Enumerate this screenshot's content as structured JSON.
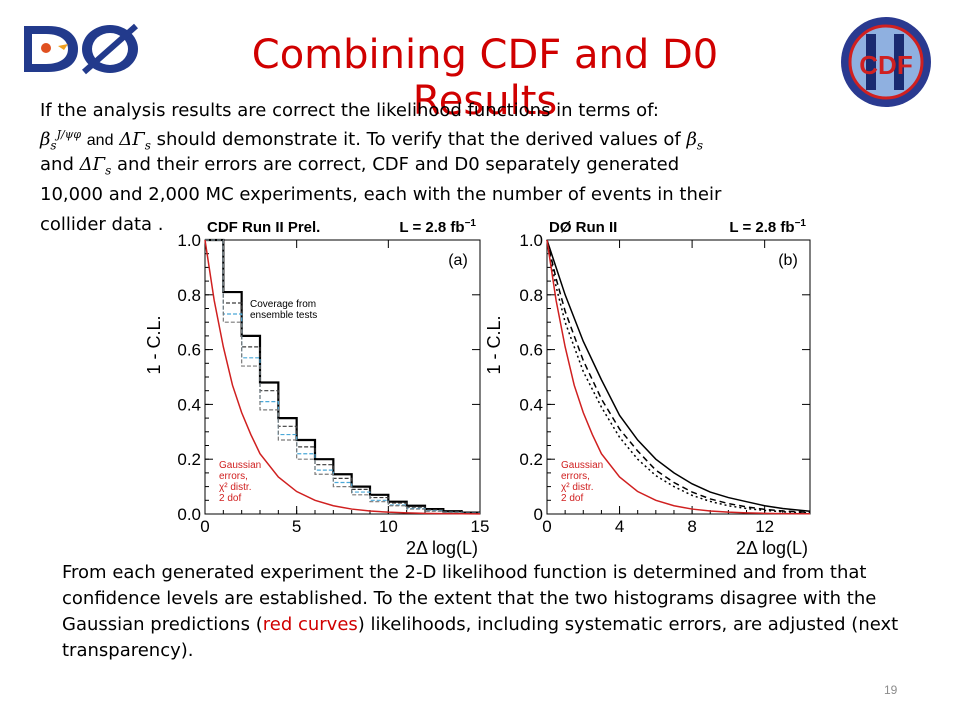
{
  "slide": {
    "title": "Combining CDF and D0 Results",
    "page_number": "19",
    "logos": {
      "left": "DØ",
      "right": "CDF"
    }
  },
  "intro": {
    "line1": "If the analysis results are correct the likelihood functions in terms of:",
    "sym_beta": "β",
    "sym_beta_sub": "s",
    "sym_beta_sup": "J/ψφ",
    "word_and": "and",
    "sym_dgamma": "ΔΓ",
    "sym_dgamma_sub": "s",
    "line2_rest": "should demonstrate it.  To verify that the derived values of",
    "sym_beta2": "β",
    "sym_beta2_sub": "s",
    "line3_a": "and",
    "sym_dgamma2": "ΔΓ",
    "sym_dgamma2_sub": "s",
    "line3_b": "and their  errors are  correct, CDF and D0 separately generated",
    "line4": "10,000 and  2,000 MC experiments,  each with the number of events in their",
    "line5": "collider data ."
  },
  "conclusion": {
    "text_before": "From each generated experiment the 2-D likelihood function is determined and from that confidence levels are established.  To the extent that the two histograms disagree with the Gaussian predictions (",
    "text_red": "red curves",
    "text_after": ") likelihoods, including systematic errors, are adjusted (next transparency)."
  },
  "chart_data": [
    {
      "type": "line",
      "panel": "(a)",
      "header_left": "CDF  Run II Prel.",
      "header_right": "L = 2.8 fb",
      "header_right_sup": "−1",
      "xlabel": "2Δ log(L)",
      "ylabel": "1 - C.L.",
      "xlim": [
        0,
        15
      ],
      "ylim": [
        0,
        1.0
      ],
      "xticks": [
        0,
        5,
        10,
        15
      ],
      "yticks": [
        0.0,
        0.2,
        0.4,
        0.6,
        0.8,
        1.0
      ],
      "annotations": [
        {
          "text": "Coverage from",
          "color": "#000000"
        },
        {
          "text": "ensemble tests",
          "color": "#000000"
        },
        {
          "text": "Gaussian",
          "color": "#d02020"
        },
        {
          "text": "errors,",
          "color": "#d02020"
        },
        {
          "text": "χ² distr.",
          "color": "#d02020"
        },
        {
          "text": "2 dof",
          "color": "#d02020"
        }
      ],
      "series": [
        {
          "kind": "step",
          "bin_edges": [
            0,
            1,
            2,
            3,
            4,
            5,
            6,
            7,
            8,
            9,
            10,
            11,
            12,
            13,
            14,
            15
          ],
          "values": [
            1.0,
            0.81,
            0.65,
            0.48,
            0.35,
            0.27,
            0.2,
            0.145,
            0.1,
            0.07,
            0.045,
            0.03,
            0.018,
            0.01,
            0.005
          ],
          "color": "#000000"
        },
        {
          "kind": "step",
          "bin_edges": [
            0,
            1,
            2,
            3,
            4,
            5,
            6,
            7,
            8,
            9,
            10,
            11,
            12,
            13,
            14,
            15
          ],
          "values": [
            1.0,
            0.77,
            0.61,
            0.45,
            0.32,
            0.245,
            0.18,
            0.13,
            0.09,
            0.06,
            0.04,
            0.025,
            0.015,
            0.008,
            0.004
          ],
          "color": "#3a3a3a"
        },
        {
          "kind": "step",
          "bin_edges": [
            0,
            1,
            2,
            3,
            4,
            5,
            6,
            7,
            8,
            9,
            10,
            11,
            12,
            13,
            14,
            15
          ],
          "values": [
            1.0,
            0.73,
            0.57,
            0.41,
            0.29,
            0.22,
            0.16,
            0.115,
            0.08,
            0.05,
            0.033,
            0.02,
            0.012,
            0.006,
            0.003
          ],
          "color": "#4aa8d8"
        },
        {
          "kind": "step",
          "bin_edges": [
            0,
            1,
            2,
            3,
            4,
            5,
            6,
            7,
            8,
            9,
            10,
            11,
            12,
            13,
            14,
            15
          ],
          "values": [
            1.0,
            0.7,
            0.54,
            0.38,
            0.27,
            0.2,
            0.145,
            0.1,
            0.07,
            0.045,
            0.03,
            0.018,
            0.01,
            0.005,
            0.002
          ],
          "color": "#7a7a7a"
        },
        {
          "kind": "curve",
          "x": [
            0,
            0.5,
            1,
            1.5,
            2,
            2.5,
            3,
            4,
            5,
            6,
            7,
            8,
            9,
            10,
            11,
            12,
            13,
            14,
            15
          ],
          "values": [
            1.0,
            0.78,
            0.61,
            0.47,
            0.37,
            0.29,
            0.22,
            0.135,
            0.082,
            0.05,
            0.03,
            0.018,
            0.011,
            0.0067,
            0.004,
            0.0025,
            0.0015,
            0.0009,
            0.0006
          ],
          "color": "#d02020"
        }
      ]
    },
    {
      "type": "line",
      "panel": "(b)",
      "header_left": "DØ  Run II",
      "header_right": "L = 2.8 fb",
      "header_right_sup": "−1",
      "xlabel": "2Δ log(L)",
      "ylabel": "1 - C.L.",
      "xlim": [
        0,
        14.5
      ],
      "ylim": [
        0,
        1.0
      ],
      "xticks": [
        0,
        4,
        8,
        12
      ],
      "yticks": [
        0,
        0.2,
        0.4,
        0.6,
        0.8,
        1.0
      ],
      "annotations": [
        {
          "text": "Gaussian",
          "color": "#d02020"
        },
        {
          "text": "errors,",
          "color": "#d02020"
        },
        {
          "text": "χ² distr.",
          "color": "#d02020"
        },
        {
          "text": "2 dof",
          "color": "#d02020"
        }
      ],
      "series": [
        {
          "kind": "curve",
          "x": [
            0,
            0.5,
            1,
            2,
            3,
            4,
            5,
            6,
            7,
            8,
            9,
            10,
            11,
            12,
            13,
            14.5
          ],
          "values": [
            1.0,
            0.9,
            0.8,
            0.63,
            0.49,
            0.36,
            0.27,
            0.2,
            0.15,
            0.11,
            0.08,
            0.06,
            0.045,
            0.03,
            0.02,
            0.01
          ],
          "color": "#000000",
          "dash": "solid"
        },
        {
          "kind": "curve",
          "x": [
            0,
            0.5,
            1,
            2,
            3,
            4,
            5,
            6,
            7,
            8,
            9,
            10,
            11,
            12,
            13,
            14.5
          ],
          "values": [
            1.0,
            0.86,
            0.74,
            0.56,
            0.42,
            0.31,
            0.23,
            0.16,
            0.115,
            0.08,
            0.055,
            0.038,
            0.026,
            0.017,
            0.011,
            0.006
          ],
          "color": "#000000",
          "dash": "6,4"
        },
        {
          "kind": "curve",
          "x": [
            0,
            0.5,
            1,
            2,
            3,
            4,
            5,
            6,
            7,
            8,
            9,
            10,
            11,
            12,
            13,
            14.5
          ],
          "values": [
            1.0,
            0.83,
            0.7,
            0.52,
            0.39,
            0.28,
            0.2,
            0.14,
            0.1,
            0.068,
            0.046,
            0.03,
            0.02,
            0.013,
            0.008,
            0.004
          ],
          "color": "#000000",
          "dash": "2,3"
        },
        {
          "kind": "curve",
          "x": [
            0,
            0.5,
            1,
            1.5,
            2,
            2.5,
            3,
            4,
            5,
            6,
            7,
            8,
            9,
            10,
            11,
            12,
            13,
            14.5
          ],
          "values": [
            1.0,
            0.78,
            0.61,
            0.47,
            0.37,
            0.29,
            0.22,
            0.135,
            0.082,
            0.05,
            0.03,
            0.018,
            0.011,
            0.0067,
            0.004,
            0.0025,
            0.0015,
            0.0007
          ],
          "color": "#d02020",
          "dash": "solid"
        }
      ]
    }
  ]
}
